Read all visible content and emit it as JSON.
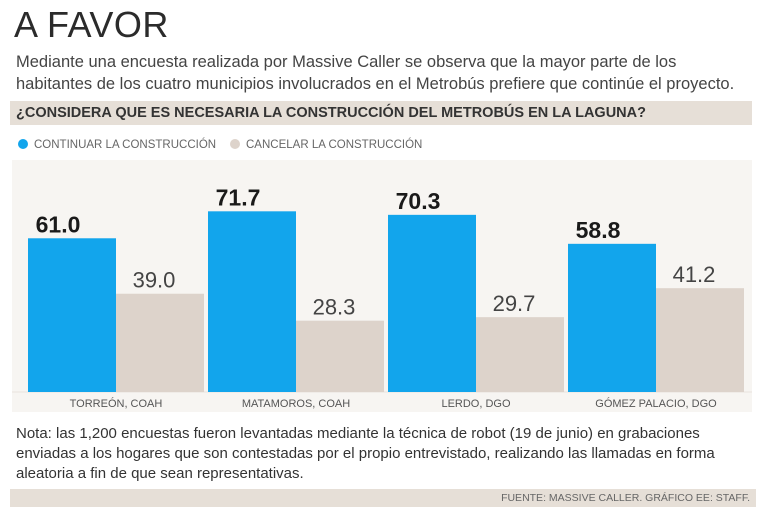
{
  "header": {
    "title": "A FAVOR",
    "subtitle": "Mediante una encuesta realizada por Massive Caller se observa que la mayor parte de los habitantes de los cuatro municipios involucrados en el Metrobús prefiere que continúe el proyecto."
  },
  "question": "¿CONSIDERA QUE ES NECESARIA LA CONSTRUCCIÓN DEL METROBÚS EN LA LAGUNA?",
  "legend": [
    {
      "label": "CONTINUAR LA CONSTRUCCIÓN",
      "color": "#12a5ec"
    },
    {
      "label": "CANCELAR LA CONSTRUCCIÓN",
      "color": "#ddd3cb"
    }
  ],
  "chart_data": {
    "type": "bar",
    "title": "¿CONSIDERA QUE ES NECESARIA LA CONSTRUCCIÓN DEL METROBÚS EN LA LAGUNA?",
    "categories": [
      "TORREÓN, COAH",
      "MATAMOROS, COAH",
      "LERDO, DGO",
      "GÓMEZ PALACIO, DGO"
    ],
    "series": [
      {
        "name": "CONTINUAR LA CONSTRUCCIÓN",
        "values": [
          61.0,
          71.7,
          70.3,
          58.8
        ],
        "color": "#12a5ec",
        "labels": [
          "61.0",
          "71.7",
          "70.3",
          "58.8"
        ]
      },
      {
        "name": "CANCELAR LA CONSTRUCCIÓN",
        "values": [
          39.0,
          28.3,
          29.7,
          41.2
        ],
        "color": "#ddd3cb",
        "labels": [
          "39.0",
          "28.3",
          "29.7",
          "41.2"
        ]
      }
    ],
    "xlabel": "",
    "ylabel": "",
    "ylim": [
      0,
      90
    ],
    "grid": false
  },
  "note": "Nota: las 1,200 encuestas fueron levantadas mediante la técnica de robot (19 de junio) en grabaciones enviadas a los hogares que son contestadas por el propio entrevistado, realizando las llamadas en forma aleatoria a fin de que sean representativas.",
  "source": "FUENTE: MASSIVE CALLER. GRÁFICO EE: STAFF."
}
